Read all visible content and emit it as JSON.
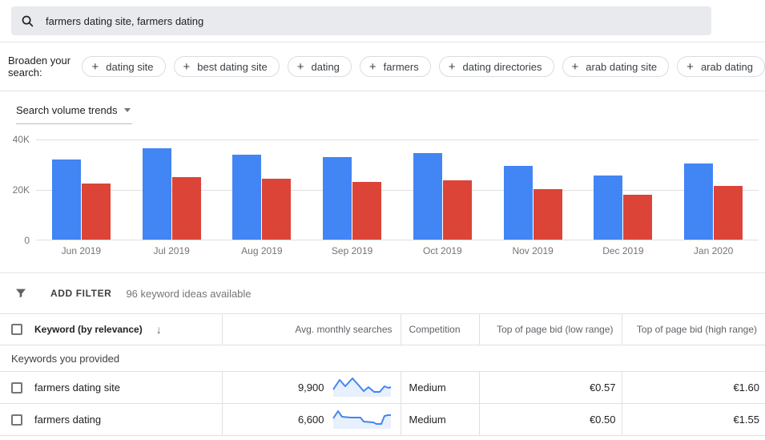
{
  "icons": {
    "plus": "+",
    "sort_desc": "↓"
  },
  "search": {
    "query": "farmers dating site, farmers dating"
  },
  "broaden": {
    "label": "Broaden your search:",
    "chips": [
      "dating site",
      "best dating site",
      "dating",
      "farmers",
      "dating directories",
      "arab dating site",
      "arab dating"
    ]
  },
  "chart_section": {
    "title": "Search volume trends"
  },
  "chart_data": {
    "type": "bar",
    "title": "Search volume trends",
    "categories": [
      "Jun 2019",
      "Jul 2019",
      "Aug 2019",
      "Sep 2019",
      "Oct 2019",
      "Nov 2019",
      "Dec 2019",
      "Jan 2020"
    ],
    "series": [
      {
        "name": "blue",
        "color": "#4285f4",
        "values": [
          32000,
          36500,
          34000,
          33000,
          34700,
          29500,
          25600,
          30300
        ]
      },
      {
        "name": "red",
        "color": "#db4437",
        "values": [
          22400,
          25100,
          24400,
          23000,
          23700,
          20200,
          17900,
          21300
        ]
      }
    ],
    "ylim": [
      0,
      40000
    ],
    "ytick_labels": [
      "40K",
      "20K",
      "0"
    ],
    "grid": true,
    "legend": "none",
    "xlabel": "",
    "ylabel": ""
  },
  "filter_bar": {
    "add_filter": "ADD FILTER",
    "ideas_count": "96 keyword ideas available"
  },
  "table": {
    "columns": [
      {
        "label": "Keyword (by relevance)"
      },
      {
        "label": "Avg. monthly searches"
      },
      {
        "label": "Competition"
      },
      {
        "label": "Top of page bid (low range)"
      },
      {
        "label": "Top of page bid (high range)"
      }
    ],
    "section_label": "Keywords you provided",
    "rows": [
      {
        "keyword": "farmers dating site",
        "avg_monthly_searches": "9,900",
        "competition": "Medium",
        "bid_low": "€0.57",
        "bid_high": "€1.60",
        "sparkline": [
          [
            2,
            17
          ],
          [
            10,
            5
          ],
          [
            17,
            13
          ],
          [
            26,
            3
          ],
          [
            34,
            12
          ],
          [
            40,
            19
          ],
          [
            46,
            14
          ],
          [
            53,
            20
          ],
          [
            60,
            20
          ],
          [
            66,
            13
          ],
          [
            71,
            15
          ],
          [
            74,
            14
          ]
        ]
      },
      {
        "keyword": "farmers dating",
        "avg_monthly_searches": "6,600",
        "competition": "Medium",
        "bid_low": "€0.50",
        "bid_high": "€1.55",
        "sparkline": [
          [
            2,
            13
          ],
          [
            8,
            4
          ],
          [
            13,
            11
          ],
          [
            24,
            12
          ],
          [
            36,
            12
          ],
          [
            40,
            17
          ],
          [
            52,
            18
          ],
          [
            56,
            20
          ],
          [
            62,
            20
          ],
          [
            66,
            10
          ],
          [
            70,
            9
          ],
          [
            74,
            9
          ]
        ]
      }
    ]
  },
  "sparkline_style": {
    "stroke": "#4285f4",
    "fill": "#e8f0fe"
  }
}
